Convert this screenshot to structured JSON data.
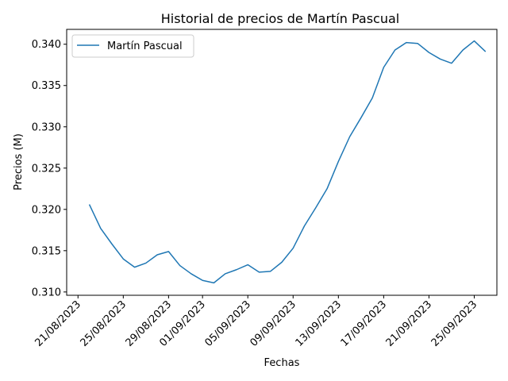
{
  "chart_data": {
    "type": "line",
    "title": "Historial de precios de Martín Pascual",
    "xlabel": "Fechas",
    "ylabel": "Precios (M)",
    "legend_position": "top-left",
    "grid": false,
    "x_tick_labels": [
      "21/08/2023",
      "25/08/2023",
      "29/08/2023",
      "01/09/2023",
      "05/09/2023",
      "09/09/2023",
      "13/09/2023",
      "17/09/2023",
      "21/09/2023",
      "25/09/2023"
    ],
    "y_tick_labels": [
      "0.310",
      "0.315",
      "0.320",
      "0.325",
      "0.330",
      "0.335",
      "0.340"
    ],
    "ylim": [
      0.3096,
      0.3418
    ],
    "x_range": [
      "2023-08-20",
      "2023-09-27"
    ],
    "series": [
      {
        "name": "Martín Pascual",
        "color": "#1f77b4",
        "x": [
          "2023-08-22",
          "2023-08-23",
          "2023-08-24",
          "2023-08-25",
          "2023-08-26",
          "2023-08-27",
          "2023-08-28",
          "2023-08-29",
          "2023-08-30",
          "2023-08-31",
          "2023-09-01",
          "2023-09-02",
          "2023-09-03",
          "2023-09-04",
          "2023-09-05",
          "2023-09-06",
          "2023-09-07",
          "2023-09-08",
          "2023-09-09",
          "2023-09-10",
          "2023-09-11",
          "2023-09-12",
          "2023-09-13",
          "2023-09-14",
          "2023-09-15",
          "2023-09-16",
          "2023-09-17",
          "2023-09-18",
          "2023-09-19",
          "2023-09-20",
          "2023-09-21",
          "2023-09-22",
          "2023-09-23",
          "2023-09-24",
          "2023-09-25",
          "2023-09-26"
        ],
        "y": [
          0.3206,
          0.3177,
          0.3158,
          0.314,
          0.313,
          0.3135,
          0.3145,
          0.3149,
          0.3132,
          0.3122,
          0.3114,
          0.3111,
          0.3122,
          0.3127,
          0.3133,
          0.3124,
          0.3125,
          0.3136,
          0.3153,
          0.318,
          0.3202,
          0.3225,
          0.3258,
          0.3288,
          0.3311,
          0.3335,
          0.3372,
          0.3393,
          0.3402,
          0.3401,
          0.339,
          0.3382,
          0.3377,
          0.3393,
          0.3404,
          0.3391
        ]
      }
    ]
  }
}
